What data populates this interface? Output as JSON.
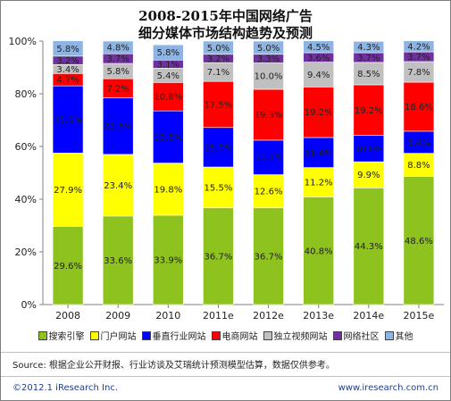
{
  "title_line1": "2008-2015年中国网络广告",
  "title_line2": "细分媒体市场结构趋势及预测",
  "source": "Source: 根据企业公开财报、行业访谈及艾瑞统计预测模型估算，数据仅供参考。",
  "copyright": "©2012.1 iResearch Inc.",
  "website": "www.iresearch.com.cn",
  "chart_data": {
    "type": "bar",
    "stacked": true,
    "categories": [
      "2008",
      "2009",
      "2010",
      "2011e",
      "2012e",
      "2013e",
      "2014e",
      "2015e"
    ],
    "y_ticks": [
      "0%",
      "20%",
      "40%",
      "60%",
      "80%",
      "100%"
    ],
    "ylim": [
      0,
      100
    ],
    "grid": false,
    "legend_position": "bottom",
    "series": [
      {
        "name": "搜索引擎",
        "color": "#8dc21f",
        "values": [
          29.6,
          33.6,
          33.9,
          36.7,
          36.7,
          40.8,
          44.3,
          48.6
        ]
      },
      {
        "name": "门户网站",
        "color": "#ffff00",
        "values": [
          27.9,
          23.4,
          19.8,
          15.5,
          12.6,
          11.2,
          9.9,
          8.8
        ]
      },
      {
        "name": "垂直行业网站",
        "color": "#0000ff",
        "values": [
          25.5,
          21.5,
          19.8,
          15.0,
          13.1,
          11.4,
          10.0,
          8.4
        ]
      },
      {
        "name": "电商网站",
        "color": "#ff0000",
        "values": [
          4.7,
          7.2,
          10.8,
          17.5,
          19.3,
          19.2,
          19.2,
          18.6
        ]
      },
      {
        "name": "独立视频网站",
        "color": "#c0c0c0",
        "values": [
          3.4,
          5.8,
          5.4,
          7.1,
          10.0,
          9.4,
          8.5,
          7.8
        ]
      },
      {
        "name": "网络社区",
        "color": "#7030a0",
        "values": [
          3.2,
          3.7,
          3.1,
          3.2,
          3.3,
          3.6,
          3.7,
          3.7
        ]
      },
      {
        "name": "其他",
        "color": "#8eb4e3",
        "values": [
          5.8,
          4.8,
          5.8,
          5.0,
          5.0,
          4.5,
          4.3,
          4.2
        ]
      }
    ]
  }
}
